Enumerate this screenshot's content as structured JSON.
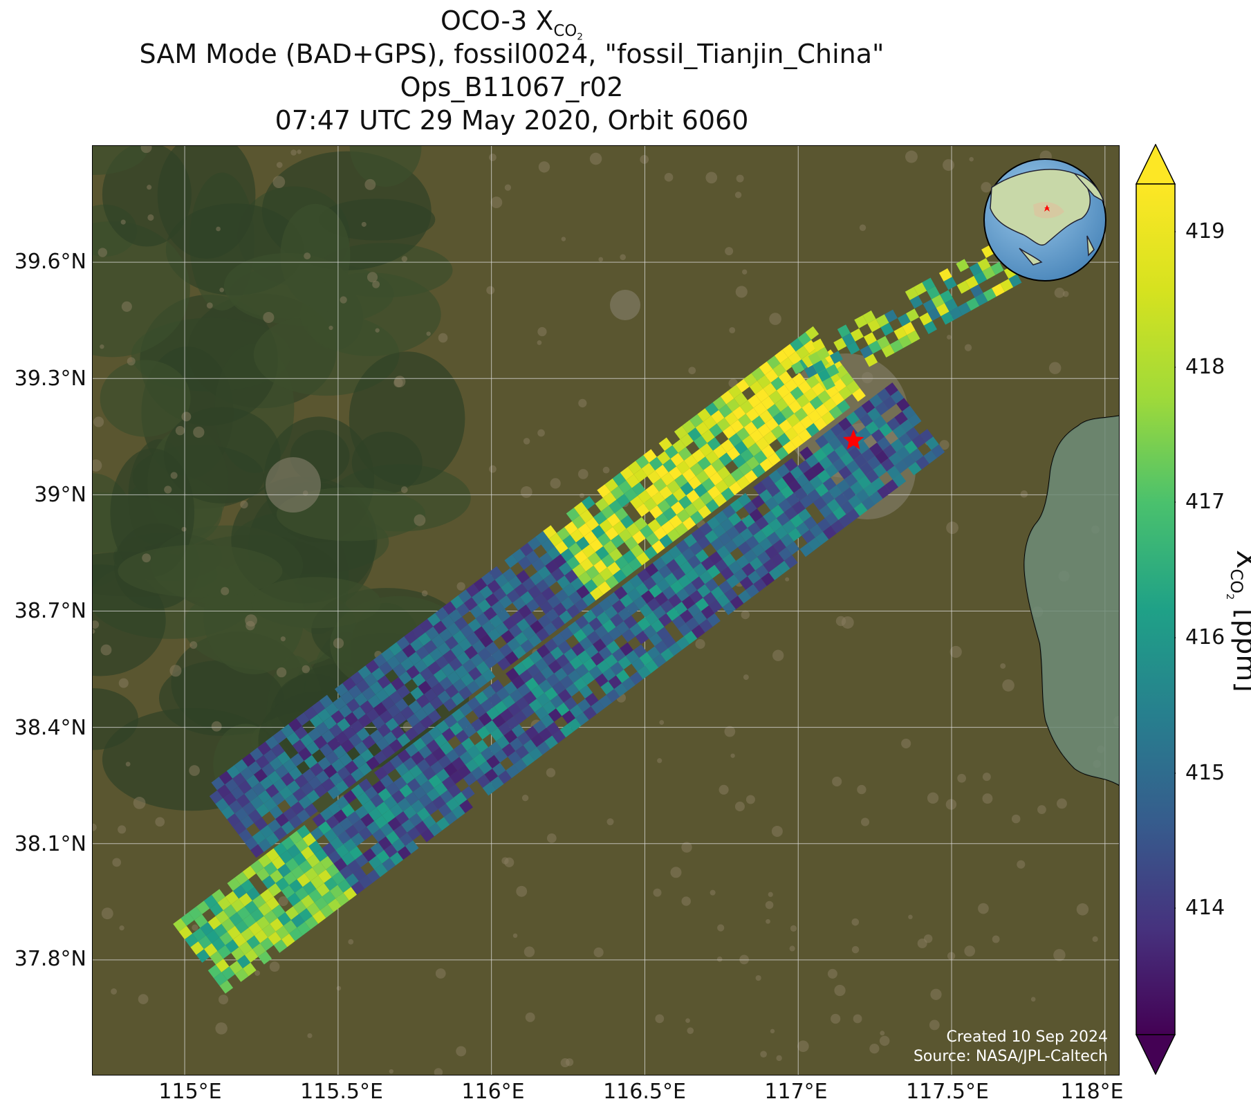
{
  "title": {
    "line1_prefix": "OCO-3 X",
    "line1_sub": "CO",
    "line1_sub2": "2",
    "line2": "SAM Mode (BAD+GPS), fossil0024, \"fossil_Tianjin_China\"",
    "line3": "Ops_B11067_r02",
    "line4": "07:47 UTC 29 May 2020, Orbit 6060"
  },
  "map": {
    "background_colors": {
      "forest": "#3a4a2a",
      "cropland": "#5e5a32",
      "urban": "#8a8270",
      "sea": "#6e8a78",
      "coast": "#000000"
    },
    "lat_ticks": [
      "39.6°N",
      "39.3°N",
      "39°N",
      "38.7°N",
      "38.4°N",
      "38.1°N",
      "37.8°N"
    ],
    "lon_ticks": [
      "115°E",
      "115.5°E",
      "116°E",
      "116.5°E",
      "117°E",
      "117.5°E",
      "118°E"
    ],
    "target_marker": {
      "icon": "red-star-icon",
      "color": "#ff0000"
    },
    "inset_globe": {
      "icon": "globe-icon",
      "ocean_color": "#6aa6d6",
      "land_color": "#c8d8a8",
      "marker_color": "#ff0000"
    },
    "credit_line1": "Created 10 Sep 2024",
    "credit_line2": "Source: NASA/JPL-Caltech"
  },
  "colorbar": {
    "ticks": [
      "419",
      "418",
      "417",
      "416",
      "415",
      "414"
    ],
    "label_prefix": "X",
    "label_sub": "CO",
    "label_sub2": "2",
    "label_suffix": " [ppm]",
    "colormap": "viridis",
    "range": [
      413,
      419.5
    ],
    "extend": "both"
  },
  "chart_data": {
    "type": "map",
    "lat_range": [
      37.5,
      39.9
    ],
    "lon_range": [
      114.7,
      118.05
    ],
    "target": {
      "lat": 39.14,
      "lon": 117.18
    },
    "swaths": [
      {
        "name": "upper swath",
        "from": {
          "lon": 115.15,
          "lat": 38.15
        },
        "to": {
          "lon": 117.15,
          "lat": 39.35
        },
        "typical_ppm": [
          413.5,
          419.5
        ]
      },
      {
        "name": "lower swath",
        "from": {
          "lon": 115.05,
          "lat": 37.8
        },
        "to": {
          "lon": 117.4,
          "lat": 39.2
        },
        "typical_ppm": [
          413.5,
          418.5
        ]
      },
      {
        "name": "north scan",
        "from": {
          "lon": 117.0,
          "lat": 39.3
        },
        "to": {
          "lon": 117.8,
          "lat": 39.65
        },
        "typical_ppm": [
          415,
          419.5
        ]
      }
    ]
  }
}
